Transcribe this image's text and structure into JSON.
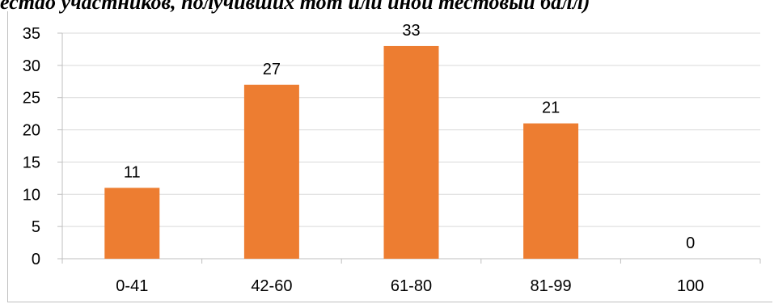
{
  "caption": "естdо участников, получивших тот или иной тестовый балл)",
  "chart_data": {
    "type": "bar",
    "categories": [
      "0-41",
      "42-60",
      "61-80",
      "81-99",
      "100"
    ],
    "values": [
      11,
      27,
      33,
      21,
      0
    ],
    "data_labels": [
      "11",
      "27",
      "33",
      "21",
      "0"
    ],
    "title": "",
    "xlabel": "",
    "ylabel": "",
    "ylim": [
      0,
      35
    ],
    "yticks": [
      "0",
      "5",
      "10",
      "15",
      "20",
      "25",
      "30",
      "35"
    ],
    "grid": true,
    "legend": "none",
    "bar_color": "#ED7D31",
    "grid_color": "#d9d9d9"
  }
}
